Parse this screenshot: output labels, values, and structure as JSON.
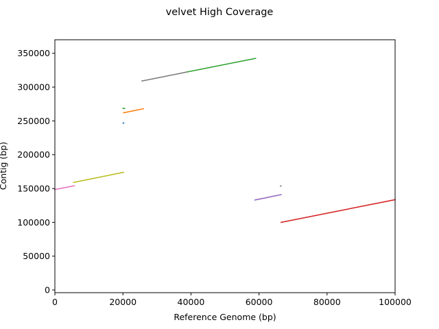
{
  "chart_data": {
    "type": "line",
    "title": "velvet High Coverage",
    "xlabel": "Reference Genome (bp)",
    "ylabel": "Contig (bp)",
    "xlim": [
      0,
      100000
    ],
    "ylim": [
      -4000,
      370000
    ],
    "grid": false,
    "xticks": [
      {
        "value": 0,
        "label": "0"
      },
      {
        "value": 20000,
        "label": "20000"
      },
      {
        "value": 40000,
        "label": "40000"
      },
      {
        "value": 60000,
        "label": "60000"
      },
      {
        "value": 80000,
        "label": "80000"
      },
      {
        "value": 100000,
        "label": "100000"
      }
    ],
    "yticks": [
      {
        "value": 0,
        "label": "0"
      },
      {
        "value": 50000,
        "label": "50000"
      },
      {
        "value": 100000,
        "label": "100000"
      },
      {
        "value": 150000,
        "label": "150000"
      },
      {
        "value": 200000,
        "label": "200000"
      },
      {
        "value": 250000,
        "label": "250000"
      },
      {
        "value": 300000,
        "label": "300000"
      },
      {
        "value": 350000,
        "label": "350000"
      }
    ],
    "series": [
      {
        "color": "#e377c2",
        "x": [
          0,
          5700
        ],
        "y": [
          148500,
          154000
        ]
      },
      {
        "color": "#bcbd22",
        "x": [
          5500,
          20200
        ],
        "y": [
          159000,
          174000
        ]
      },
      {
        "color": "#1f77b4",
        "x": [
          20050,
          20250
        ],
        "y": [
          246500,
          247000
        ]
      },
      {
        "color": "#2ca02c",
        "x": [
          20000,
          20500
        ],
        "y": [
          268500,
          268500
        ]
      },
      {
        "color": "#ff7f0e",
        "x": [
          20200,
          26000
        ],
        "y": [
          262000,
          268000
        ]
      },
      {
        "color": "#7f7f7f",
        "x": [
          25600,
          39000
        ],
        "y": [
          309000,
          322500
        ]
      },
      {
        "color": "#2ca02c",
        "x": [
          39000,
          59000
        ],
        "y": [
          322500,
          342500
        ]
      },
      {
        "color": "#9467bd",
        "x": [
          58800,
          66500
        ],
        "y": [
          133000,
          141000
        ]
      },
      {
        "color": "#7f7f7f",
        "x": [
          66300,
          66500
        ],
        "y": [
          153500,
          154000
        ]
      },
      {
        "color": "#d62728",
        "x": [
          66500,
          100000
        ],
        "y": [
          100000,
          133500
        ]
      }
    ]
  }
}
